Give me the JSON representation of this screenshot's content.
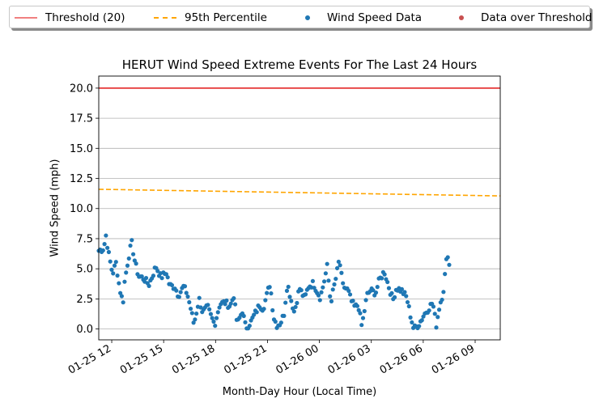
{
  "chart_data": {
    "type": "scatter",
    "title": "HERUT Wind Speed Extreme Events For The Last 24 Hours",
    "xlabel": "Month-Day Hour (Local Time)",
    "ylabel": "Wind Speed (mph)",
    "x_ticks": [
      "01-25 12",
      "01-25 15",
      "01-25 18",
      "01-25 21",
      "01-26 00",
      "01-26 03",
      "01-26 06",
      "01-26 09"
    ],
    "x_range_hours": [
      0,
      23.2
    ],
    "y_ticks": [
      "0.0",
      "2.5",
      "5.0",
      "7.5",
      "10.0",
      "12.5",
      "15.0",
      "17.5",
      "20.0"
    ],
    "ylim": [
      -0.9,
      21.0
    ],
    "grid": "horizontal",
    "legend_position": "top, above plot",
    "colors": {
      "threshold": "#e84a4a",
      "percentile": "#ffa500",
      "data": "#1f77b4",
      "over_threshold": "#c85050"
    },
    "series": [
      {
        "name": "Threshold (20)",
        "kind": "hline",
        "value": 20.0
      },
      {
        "name": "95th Percentile",
        "kind": "dashed-line",
        "x": [
          0,
          23.2
        ],
        "y": [
          11.6,
          11.05
        ]
      },
      {
        "name": "Wind Speed Data",
        "kind": "points",
        "anchors": [
          [
            0,
            6.5
          ],
          [
            0.3,
            6.7
          ],
          [
            0.4,
            7.9
          ],
          [
            0.6,
            6.0
          ],
          [
            0.8,
            4.6
          ],
          [
            1.0,
            5.5
          ],
          [
            1.2,
            3.4
          ],
          [
            1.4,
            2.2
          ],
          [
            1.5,
            4.0
          ],
          [
            1.7,
            5.8
          ],
          [
            1.9,
            7.2
          ],
          [
            2.1,
            5.5
          ],
          [
            2.3,
            4.4
          ],
          [
            2.6,
            4.2
          ],
          [
            2.9,
            3.7
          ],
          [
            3.1,
            4.4
          ],
          [
            3.3,
            5.2
          ],
          [
            3.6,
            4.3
          ],
          [
            3.9,
            4.7
          ],
          [
            4.1,
            3.6
          ],
          [
            4.4,
            3.5
          ],
          [
            4.6,
            2.8
          ],
          [
            4.9,
            3.5
          ],
          [
            5.1,
            3.0
          ],
          [
            5.3,
            1.8
          ],
          [
            5.5,
            0.4
          ],
          [
            5.8,
            2.5
          ],
          [
            6.0,
            1.4
          ],
          [
            6.3,
            1.8
          ],
          [
            6.5,
            1.0
          ],
          [
            6.7,
            0.4
          ],
          [
            7.0,
            2.1
          ],
          [
            7.3,
            2.2
          ],
          [
            7.6,
            1.9
          ],
          [
            7.8,
            2.8
          ],
          [
            8.0,
            0.4
          ],
          [
            8.3,
            1.5
          ],
          [
            8.5,
            0.1
          ],
          [
            8.8,
            0.6
          ],
          [
            9.0,
            1.2
          ],
          [
            9.3,
            2.0
          ],
          [
            9.5,
            1.7
          ],
          [
            9.9,
            3.8
          ],
          [
            10.1,
            1.0
          ],
          [
            10.3,
            0.3
          ],
          [
            10.5,
            0.5
          ],
          [
            10.7,
            1.2
          ],
          [
            10.9,
            3.8
          ],
          [
            11.1,
            2.5
          ],
          [
            11.3,
            1.4
          ],
          [
            11.6,
            3.4
          ],
          [
            11.9,
            2.5
          ],
          [
            12.1,
            3.5
          ],
          [
            12.4,
            3.8
          ],
          [
            12.6,
            3.2
          ],
          [
            12.8,
            2.6
          ],
          [
            13.0,
            3.8
          ],
          [
            13.2,
            5.2
          ],
          [
            13.4,
            2.2
          ],
          [
            13.7,
            4.2
          ],
          [
            13.9,
            5.8
          ],
          [
            14.1,
            3.6
          ],
          [
            14.4,
            3.2
          ],
          [
            14.6,
            2.3
          ],
          [
            14.8,
            1.8
          ],
          [
            15.0,
            2.0
          ],
          [
            15.2,
            0.2
          ],
          [
            15.5,
            2.8
          ],
          [
            15.7,
            3.2
          ],
          [
            16.0,
            3.0
          ],
          [
            16.2,
            4.0
          ],
          [
            16.5,
            4.8
          ],
          [
            16.7,
            3.8
          ],
          [
            17.0,
            2.4
          ],
          [
            17.2,
            3.4
          ],
          [
            17.5,
            3.2
          ],
          [
            17.8,
            2.6
          ],
          [
            18.0,
            1.2
          ],
          [
            18.2,
            0.0
          ],
          [
            18.5,
            0.4
          ],
          [
            18.8,
            1.2
          ],
          [
            19.1,
            1.8
          ],
          [
            19.3,
            2.2
          ],
          [
            19.5,
            0.3
          ],
          [
            19.7,
            2.0
          ],
          [
            19.9,
            3.0
          ],
          [
            20.1,
            5.8
          ],
          [
            20.2,
            6.4
          ],
          [
            20.3,
            4.3
          ]
        ]
      },
      {
        "name": "Data over Threshold",
        "kind": "points",
        "anchors": []
      }
    ]
  }
}
